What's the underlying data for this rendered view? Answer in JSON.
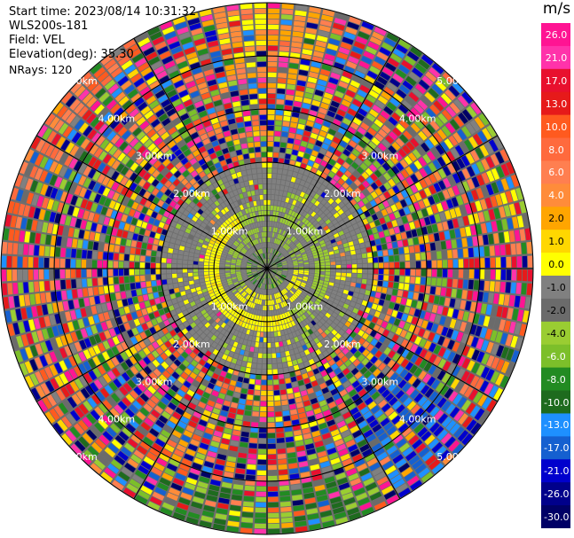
{
  "header": {
    "start_time": "Start time: 2023/08/14 10:31:32",
    "instrument": "WLS200s-181",
    "field": "Field: VEL",
    "elevation": "Elevation(deg): 35.30",
    "nrays": "NRays: 120"
  },
  "colorbar": {
    "unit": "m/s",
    "levels": [
      "26.0",
      "21.0",
      "17.0",
      "13.0",
      "10.0",
      "8.0",
      "6.0",
      "4.0",
      "2.0",
      "1.0",
      "0.0",
      "-1.0",
      "-2.0",
      "-4.0",
      "-6.0",
      "-8.0",
      "-10.0",
      "-13.0",
      "-17.0",
      "-21.0",
      "-26.0",
      "-30.0"
    ],
    "colors": [
      "#ff1493",
      "#ff33aa",
      "#e8102e",
      "#e61a1a",
      "#ff5a1f",
      "#ff6a3d",
      "#ff7f50",
      "#ff8c3a",
      "#ffa500",
      "#ffd700",
      "#ffff00",
      "#808080",
      "#6b6b6b",
      "#9acd32",
      "#7cbf2a",
      "#228b22",
      "#1e6b1e",
      "#1e90ff",
      "#1560d0",
      "#0000cd",
      "#00008b",
      "#000066"
    ]
  },
  "chart_data": {
    "type": "ppi",
    "field": "VEL",
    "units": "m/s",
    "elevation_deg": 35.3,
    "nrays": 120,
    "range_rings_km": [
      1.0,
      2.0,
      3.0,
      4.0,
      5.0
    ],
    "range_labels": [
      "1.00km",
      "2.00km",
      "3.00km",
      "4.00km",
      "5.00km"
    ],
    "colorbar_ticks": [
      26.0,
      21.0,
      17.0,
      13.0,
      10.0,
      8.0,
      6.0,
      4.0,
      2.0,
      1.0,
      0.0,
      -1.0,
      -2.0,
      -4.0,
      -6.0,
      -8.0,
      -10.0,
      -13.0,
      -17.0,
      -21.0,
      -26.0,
      -30.0
    ],
    "near_field": "low velocities (-2 to 2 m/s) within 1 km; yellow ring west/south, green ring north/east",
    "far_field": "noisy, full color range beyond 2 km"
  }
}
